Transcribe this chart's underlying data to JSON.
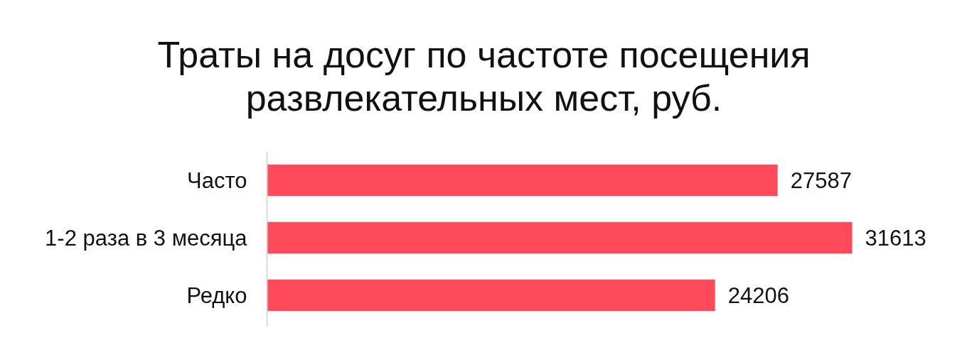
{
  "chart_data": {
    "type": "bar",
    "orientation": "horizontal",
    "title": "Траты на досуг по частоте посещения развлекательных мест, руб.",
    "categories": [
      "Часто",
      "1-2 раза в 3 месяца",
      "Редко"
    ],
    "values": [
      27587,
      31613,
      24206
    ],
    "color": "#ff4a5c",
    "data_labels": true,
    "tick_labels": "y"
  }
}
